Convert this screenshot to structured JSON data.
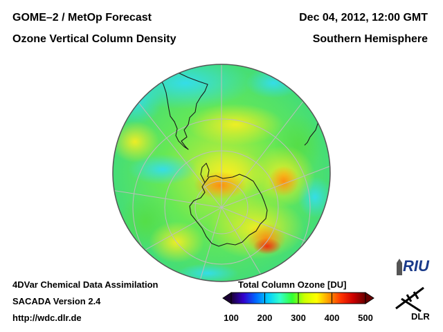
{
  "header": {
    "product_title": "GOME–2 / MetOp Forecast",
    "quantity_title": "Ozone Vertical Column Density",
    "datetime": "Dec 04, 2012, 12:00 GMT",
    "region": "Southern Hemisphere"
  },
  "footer": {
    "method": "4DVar Chemical Data Assimilation",
    "version": "SACADA Version 2.4",
    "url": "http://wdc.dlr.de"
  },
  "colorbar": {
    "title": "Total Column Ozone [DU]",
    "tick_labels": [
      "100",
      "200",
      "300",
      "400",
      "500"
    ],
    "min": 100,
    "max": 500,
    "colors": [
      "#1a0033",
      "#3300cc",
      "#0066ff",
      "#00ccff",
      "#33ffcc",
      "#33ff33",
      "#ccff00",
      "#ffff00",
      "#ff9900",
      "#ff3300",
      "#cc0000",
      "#660000"
    ]
  },
  "logos": {
    "riu": "RIU",
    "dlr": "DLR"
  },
  "map": {
    "projection": "orthographic-south-polar",
    "background_level_du": 300,
    "colors": {
      "ocean_fill": "#66ee66",
      "coast": "#1a1a1a",
      "grid": "#bdbdbd",
      "rim": "#555555"
    }
  }
}
